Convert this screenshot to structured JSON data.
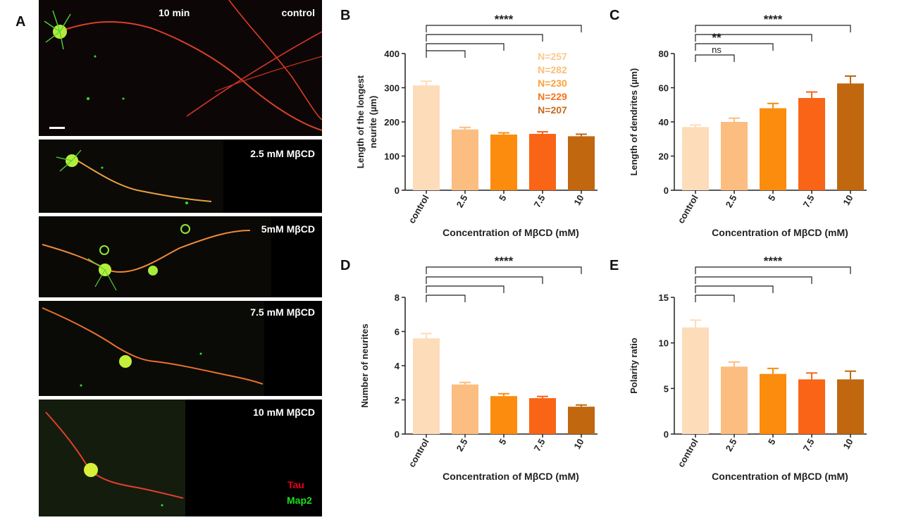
{
  "panel_a": {
    "letter": "A",
    "time_label": "10 min",
    "images": [
      {
        "label": "control"
      },
      {
        "label": "2.5 mM MβCD"
      },
      {
        "label": "5mM MβCD"
      },
      {
        "label": "7.5 mM MβCD"
      },
      {
        "label": "10 mM MβCD"
      }
    ],
    "legend": {
      "tau": "Tau",
      "map2": "Map2"
    }
  },
  "colors": {
    "control": "#FDDCBA",
    "c2_5": "#FBBD80",
    "c5": "#FB8C0E",
    "c7_5": "#F96416",
    "c10": "#C0670F",
    "n_colors": [
      "#F9C98F",
      "#FBBE7C",
      "#F9A23A",
      "#F37520",
      "#C86A1C"
    ],
    "tau": "#E8001C",
    "map2": "#19E019"
  },
  "chart_data": [
    {
      "letter": "B",
      "type": "bar",
      "categories": [
        "control",
        "2.5",
        "5",
        "7.5",
        "10"
      ],
      "values": [
        307,
        178,
        163,
        165,
        158
      ],
      "errors": [
        12,
        6,
        5,
        6,
        6
      ],
      "ylim": [
        0,
        400
      ],
      "yticks": [
        0,
        100,
        200,
        300,
        400
      ],
      "ylabel": [
        "Length of the longest",
        "neurite (µm)"
      ],
      "xlabel": "Concentration of MβCD (mM)",
      "n_labels": [
        "N=257",
        "N=282",
        "N=230",
        "N=229",
        "N=207"
      ],
      "brackets": [
        {
          "from": "control",
          "to": "2.5",
          "label": ""
        },
        {
          "from": "control",
          "to": "5",
          "label": ""
        },
        {
          "from": "control",
          "to": "7.5",
          "label": ""
        },
        {
          "from": "control",
          "to": "10",
          "label": "****"
        }
      ]
    },
    {
      "letter": "C",
      "type": "bar",
      "categories": [
        "control",
        "2.5",
        "5",
        "7.5",
        "10"
      ],
      "values": [
        37,
        40,
        48,
        54,
        62.5
      ],
      "errors": [
        1.2,
        2.2,
        2.8,
        3.5,
        4.3
      ],
      "ylim": [
        0,
        80
      ],
      "yticks": [
        0,
        20,
        40,
        60,
        80
      ],
      "ylabel": [
        "Length of dendrites (µm)"
      ],
      "xlabel": "Concentration of MβCD (mM)",
      "brackets": [
        {
          "from": "control",
          "to": "2.5",
          "label": "ns"
        },
        {
          "from": "control",
          "to": "5",
          "label": "**"
        },
        {
          "from": "control",
          "to": "7.5",
          "label": ""
        },
        {
          "from": "control",
          "to": "10",
          "label": "****"
        }
      ]
    },
    {
      "letter": "D",
      "type": "bar",
      "categories": [
        "control",
        "2.5",
        "5",
        "7.5",
        "10"
      ],
      "values": [
        5.6,
        2.9,
        2.22,
        2.1,
        1.6
      ],
      "errors": [
        0.28,
        0.12,
        0.14,
        0.1,
        0.1
      ],
      "ylim": [
        0,
        8
      ],
      "yticks": [
        0,
        2,
        4,
        6,
        8
      ],
      "ylabel": [
        "Number of neurites"
      ],
      "xlabel": "Concentration of MβCD (mM)",
      "brackets": [
        {
          "from": "control",
          "to": "2.5",
          "label": ""
        },
        {
          "from": "control",
          "to": "5",
          "label": ""
        },
        {
          "from": "control",
          "to": "7.5",
          "label": ""
        },
        {
          "from": "control",
          "to": "10",
          "label": "****"
        }
      ]
    },
    {
      "letter": "E",
      "type": "bar",
      "categories": [
        "control",
        "2.5",
        "5",
        "7.5",
        "10"
      ],
      "values": [
        11.7,
        7.4,
        6.6,
        6.0,
        6.0
      ],
      "errors": [
        0.8,
        0.5,
        0.6,
        0.7,
        0.9
      ],
      "ylim": [
        0,
        15
      ],
      "yticks": [
        0,
        5,
        10,
        15
      ],
      "ylabel": [
        "Polarity ratio"
      ],
      "xlabel": "Concentration of MβCD (mM)",
      "brackets": [
        {
          "from": "control",
          "to": "2.5",
          "label": ""
        },
        {
          "from": "control",
          "to": "5",
          "label": ""
        },
        {
          "from": "control",
          "to": "7.5",
          "label": ""
        },
        {
          "from": "control",
          "to": "10",
          "label": "****"
        }
      ]
    }
  ]
}
